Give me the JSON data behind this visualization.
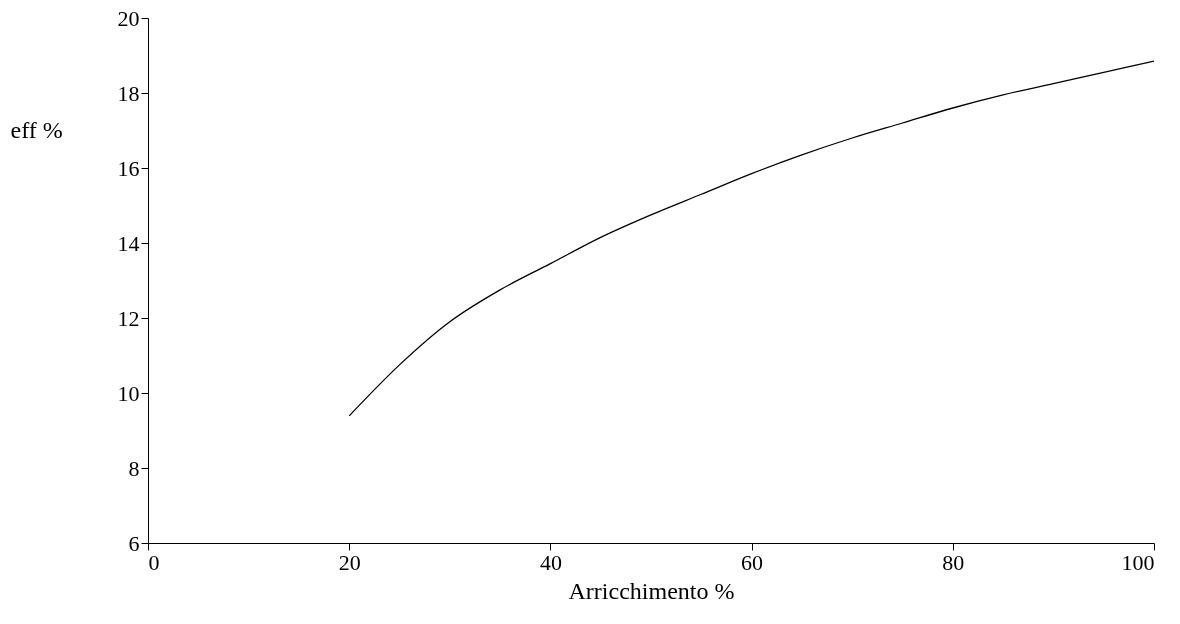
{
  "chart_data": {
    "type": "line",
    "xlabel": "Arricchimento %",
    "ylabel": "eff %",
    "x": [
      20,
      25,
      30,
      35,
      40,
      45,
      50,
      55,
      60,
      65,
      70,
      75,
      80,
      85,
      90,
      95,
      100
    ],
    "series": [
      {
        "color": "#000000",
        "values": [
          9.39,
          10.75,
          11.9,
          12.75,
          13.45,
          14.15,
          14.75,
          15.3,
          15.85,
          16.35,
          16.8,
          17.2,
          17.6,
          17.95,
          18.25,
          18.55,
          18.85
        ]
      }
    ],
    "xlim": [
      0,
      100
    ],
    "xticks": [
      0,
      20,
      40,
      60,
      80,
      100
    ],
    "ylim": [
      6,
      20
    ],
    "yticks": [
      6,
      8,
      10,
      12,
      14,
      16,
      18,
      20
    ],
    "marker": "none",
    "line_style": "solid"
  }
}
